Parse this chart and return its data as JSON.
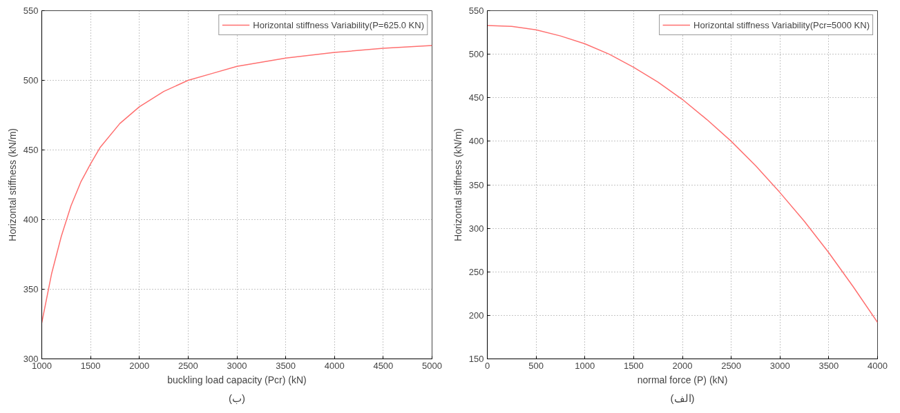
{
  "chart_data": [
    {
      "type": "line",
      "xlabel": "buckling load capacity (Pcr) (kN)",
      "ylabel": "Horizontal stiffness (kN/m)",
      "annotations": [
        "(ب)"
      ],
      "x": [
        1000,
        1100,
        1200,
        1300,
        1400,
        1500,
        1600,
        1800,
        2000,
        2250,
        2500,
        2750,
        3000,
        3500,
        4000,
        4500,
        5000
      ],
      "series": [
        {
          "name": "Horizontal stiffness Variability(P=625.0 KN)",
          "color": "#ff6f6f",
          "values": [
            326,
            361,
            388,
            410,
            427,
            440,
            452,
            469,
            481,
            492,
            500,
            505,
            510,
            516,
            520,
            523,
            525
          ]
        }
      ],
      "xlim": [
        1000,
        5000
      ],
      "xticks": [
        1000,
        1500,
        2000,
        2500,
        3000,
        3500,
        4000,
        4500,
        5000
      ],
      "ylim": [
        300,
        550
      ],
      "yticks": [
        300,
        350,
        400,
        450,
        500,
        550
      ],
      "grid": true,
      "legend": "top right",
      "line_style": "solid"
    },
    {
      "type": "line",
      "xlabel": "normal force (P) (kN)",
      "ylabel": "Horizontal stiffness (kN/m)",
      "annotations": [
        "(الف)"
      ],
      "x": [
        0,
        250,
        500,
        750,
        1000,
        1250,
        1500,
        1750,
        2000,
        2250,
        2500,
        2750,
        3000,
        3250,
        3500,
        3750,
        4000
      ],
      "series": [
        {
          "name": "Horizontal stiffness Variability(Pcr=5000 KN)",
          "color": "#ff6f6f",
          "values": [
            533,
            532,
            528,
            521,
            512,
            500,
            485,
            468,
            448,
            425,
            400,
            372,
            341,
            308,
            272,
            233,
            192
          ]
        }
      ],
      "xlim": [
        0,
        4000
      ],
      "xticks": [
        0,
        500,
        1000,
        1500,
        2000,
        2500,
        3000,
        3500,
        4000
      ],
      "ylim": [
        150,
        550
      ],
      "yticks": [
        150,
        200,
        250,
        300,
        350,
        400,
        450,
        500,
        550
      ],
      "grid": true,
      "legend": "top right",
      "line_style": "solid"
    }
  ]
}
